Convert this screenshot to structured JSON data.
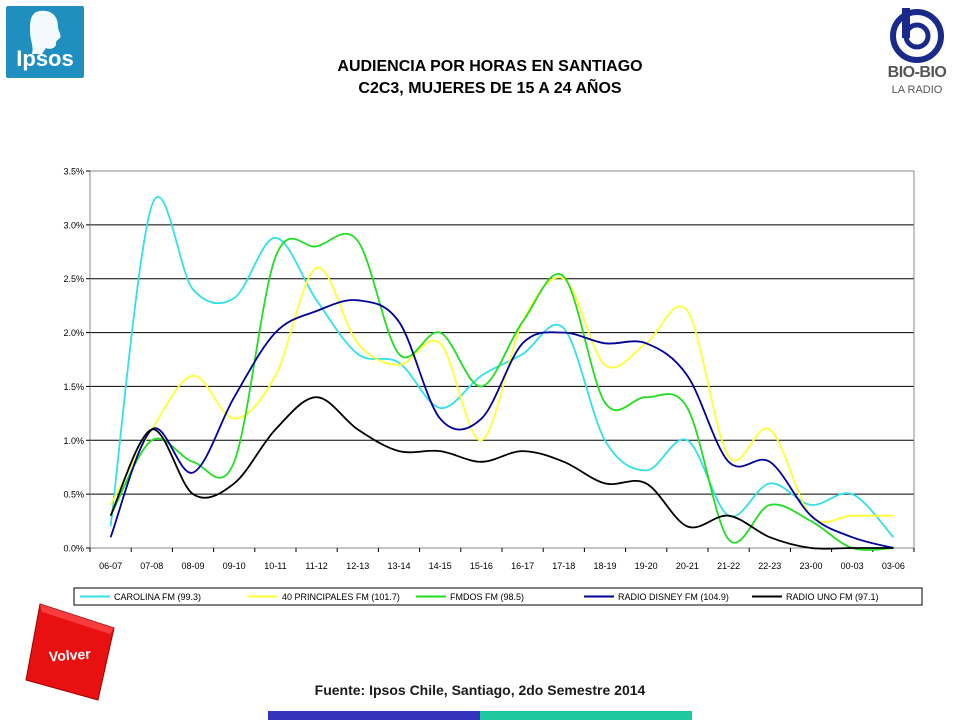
{
  "header": {
    "title_line1": "AUDIENCIA POR HORAS EN SANTIAGO",
    "title_line2": "C2C3, MUJERES DE 15 A 24 AÑOS",
    "logo_left": "Ipsos",
    "logo_right_main": "BIO-BIO",
    "logo_right_sub": "LA RADIO"
  },
  "footer": {
    "source": "Fuente: Ipsos Chile, Santiago, 2do Semestre 2014",
    "back_button": "Volver"
  },
  "chart_data": {
    "type": "line",
    "title": "",
    "xlabel": "",
    "ylabel": "",
    "ylim": [
      0,
      3.5
    ],
    "yticks": [
      "0.0%",
      "0.5%",
      "1.0%",
      "1.5%",
      "2.0%",
      "2.5%",
      "3.0%",
      "3.5%"
    ],
    "ytick_values": [
      0,
      0.5,
      1.0,
      1.5,
      2.0,
      2.5,
      3.0,
      3.5
    ],
    "grid": true,
    "legend_position": "bottom",
    "categories": [
      "06-07",
      "07-08",
      "08-09",
      "09-10",
      "10-11",
      "11-12",
      "12-13",
      "13-14",
      "14-15",
      "15-16",
      "16-17",
      "17-18",
      "18-19",
      "19-20",
      "20-21",
      "21-22",
      "22-23",
      "23-00",
      "00-03",
      "03-06"
    ],
    "series": [
      {
        "name": "CAROLINA FM (99.3)",
        "color": "#33e0e8",
        "values": [
          0.2,
          3.18,
          2.4,
          2.32,
          2.88,
          2.3,
          1.8,
          1.72,
          1.3,
          1.6,
          1.8,
          2.04,
          1.0,
          0.72,
          1.0,
          0.3,
          0.6,
          0.4,
          0.5,
          0.1
        ]
      },
      {
        "name": "40 PRINCIPALES FM (101.7)",
        "color": "#ffff33",
        "values": [
          0.4,
          1.1,
          1.6,
          1.2,
          1.6,
          2.6,
          1.9,
          1.7,
          1.9,
          1.0,
          2.1,
          2.5,
          1.7,
          1.9,
          2.2,
          0.85,
          1.1,
          0.3,
          0.3,
          0.3
        ]
      },
      {
        "name": "FMDOS FM (98.5)",
        "color": "#22dd22",
        "values": [
          0.3,
          1.0,
          0.8,
          0.8,
          2.7,
          2.8,
          2.85,
          1.8,
          2.0,
          1.5,
          2.1,
          2.52,
          1.35,
          1.4,
          1.3,
          0.08,
          0.4,
          0.25,
          0.0,
          0.0
        ]
      },
      {
        "name": "RADIO DISNEY FM (104.9)",
        "color": "#000099",
        "values": [
          0.1,
          1.1,
          0.7,
          1.4,
          2.0,
          2.2,
          2.3,
          2.1,
          1.2,
          1.2,
          1.9,
          2.0,
          1.9,
          1.9,
          1.6,
          0.8,
          0.8,
          0.3,
          0.1,
          0.0
        ]
      },
      {
        "name": "RADIO UNO FM (97.1)",
        "color": "#000000",
        "values": [
          0.3,
          1.1,
          0.5,
          0.6,
          1.1,
          1.4,
          1.1,
          0.9,
          0.9,
          0.8,
          0.9,
          0.8,
          0.6,
          0.6,
          0.2,
          0.3,
          0.1,
          0.0,
          0.0,
          0.0
        ]
      }
    ]
  }
}
